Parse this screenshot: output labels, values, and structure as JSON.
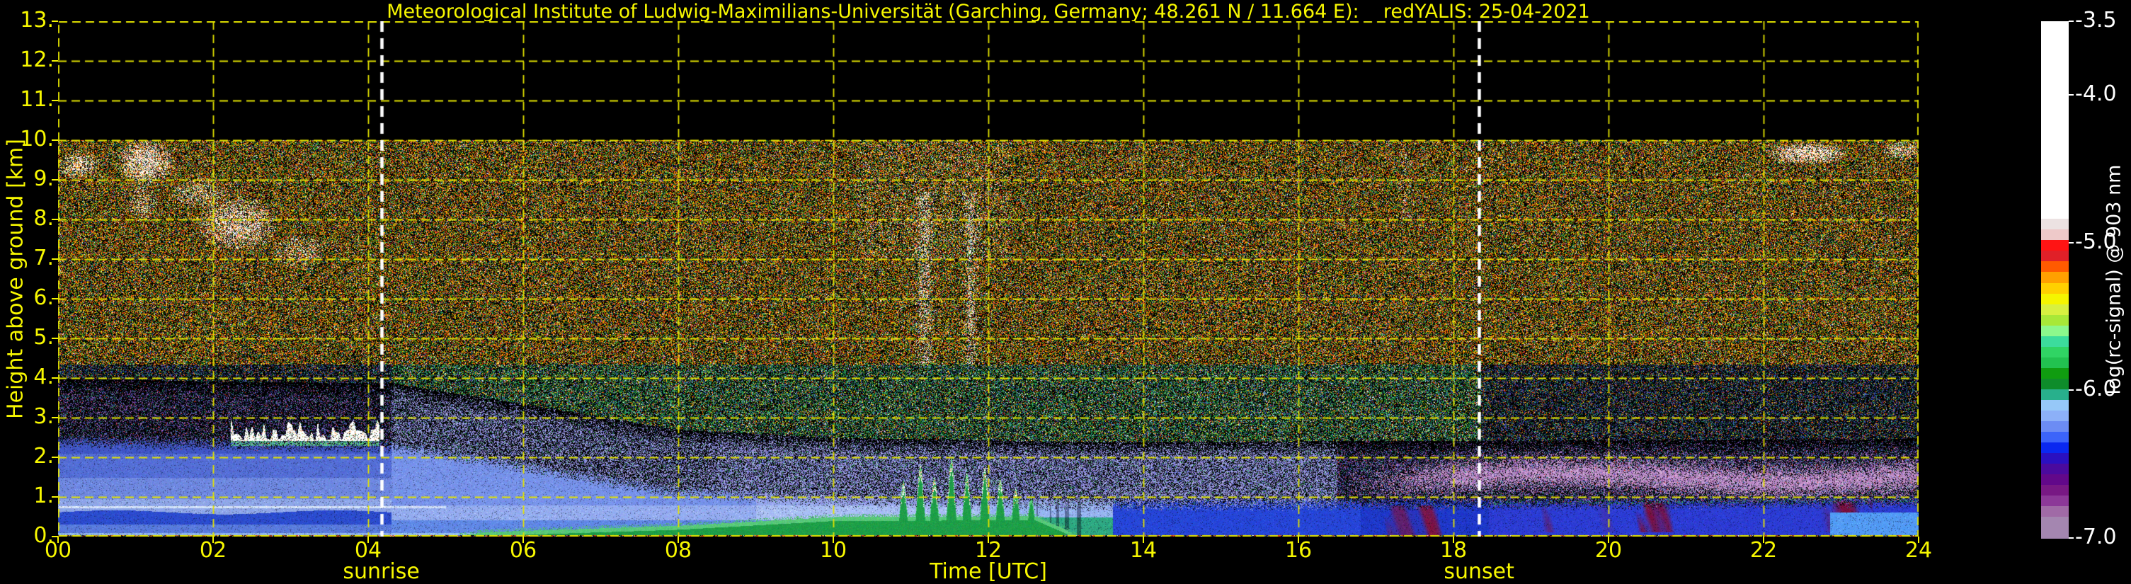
{
  "window": {
    "background": "#000000"
  },
  "header": {
    "title": "Meteorological Institute of Ludwig-Maximilians-Universität (Garching, Germany; 48.261 N / 11.664 E):    redYALIS: 25-04-2021"
  },
  "colors": {
    "axis_text": "#f7f700",
    "grid": "#e3e300",
    "tick": "#f5f500",
    "colorbar_text": "#ffffff",
    "event_line": "#ffffff",
    "background": "#000000",
    "green_layer": "#1e9e48",
    "boundary_layer_blue": "#2c4cce",
    "maroon_patch": "#781040",
    "mauve_band": "#bb8ec8",
    "cloud_white": "#ffffff",
    "cloud_fringe_orange": "#ffc896"
  },
  "chart_data": {
    "type": "heatmap",
    "title": "Meteorological Institute of Ludwig-Maximilians-Universität (Garching, Germany; 48.261 N / 11.664 E):    redYALIS: 25-04-2021",
    "xlabel": "Time [UTC]",
    "ylabel": "Height above ground [km]",
    "x_range_hours": [
      0,
      24
    ],
    "y_range_km": [
      0,
      13
    ],
    "data_top_km": 10,
    "grid": {
      "x_step_hours": 2,
      "y_step_km": 1,
      "style": "dashed",
      "on": true
    },
    "x_ticks": [
      {
        "v": 0,
        "label": "00"
      },
      {
        "v": 2,
        "label": "02"
      },
      {
        "v": 4,
        "label": "04"
      },
      {
        "v": 6,
        "label": "06"
      },
      {
        "v": 8,
        "label": "08"
      },
      {
        "v": 10,
        "label": "10"
      },
      {
        "v": 12,
        "label": "12"
      },
      {
        "v": 14,
        "label": "14"
      },
      {
        "v": 16,
        "label": "16"
      },
      {
        "v": 18,
        "label": "18"
      },
      {
        "v": 20,
        "label": "20"
      },
      {
        "v": 22,
        "label": "22"
      },
      {
        "v": 24,
        "label": "24"
      }
    ],
    "y_ticks": [
      {
        "v": 0,
        "label": "0."
      },
      {
        "v": 1,
        "label": "1."
      },
      {
        "v": 2,
        "label": "2."
      },
      {
        "v": 3,
        "label": "3."
      },
      {
        "v": 4,
        "label": "4."
      },
      {
        "v": 5,
        "label": "5."
      },
      {
        "v": 6,
        "label": "6."
      },
      {
        "v": 7,
        "label": "7."
      },
      {
        "v": 8,
        "label": "8."
      },
      {
        "v": 9,
        "label": "9."
      },
      {
        "v": 10,
        "label": "10."
      },
      {
        "v": 11,
        "label": "11."
      },
      {
        "v": 12,
        "label": "12."
      },
      {
        "v": 13,
        "label": "13."
      }
    ],
    "events": [
      {
        "name": "sunrise",
        "label": "sunrise",
        "time_utc": 4.17
      },
      {
        "name": "sunset",
        "label": "sunset",
        "time_utc": 18.33
      }
    ],
    "colorbar": {
      "label": "log(rc-signal) @ 903 nm",
      "min": -7.0,
      "max": -3.5,
      "ticks": [
        {
          "v": -3.5,
          "label": "-3.5"
        },
        {
          "v": -4.0,
          "label": "-4.0"
        },
        {
          "v": -5.0,
          "label": "-5.0"
        },
        {
          "v": -6.0,
          "label": "-6.0"
        },
        {
          "v": -7.0,
          "label": "-7.0"
        }
      ],
      "segments": [
        {
          "color": "#ffffff",
          "span": 18.6
        },
        {
          "color": "#ece2e2",
          "span": 1
        },
        {
          "color": "#eec9c9",
          "span": 1
        },
        {
          "color": "#ff1414",
          "span": 1
        },
        {
          "color": "#e02028",
          "span": 1
        },
        {
          "color": "#ff5a00",
          "span": 1
        },
        {
          "color": "#ffa000",
          "span": 1
        },
        {
          "color": "#ffd000",
          "span": 1
        },
        {
          "color": "#f5f500",
          "span": 1
        },
        {
          "color": "#d8f040",
          "span": 1
        },
        {
          "color": "#a8e838",
          "span": 1
        },
        {
          "color": "#8cf88c",
          "span": 1
        },
        {
          "color": "#3cdc9c",
          "span": 1
        },
        {
          "color": "#30d464",
          "span": 1
        },
        {
          "color": "#22c250",
          "span": 1
        },
        {
          "color": "#109c10",
          "span": 1
        },
        {
          "color": "#0e8c2a",
          "span": 1
        },
        {
          "color": "#28b08c",
          "span": 1
        },
        {
          "color": "#96c8f8",
          "span": 1
        },
        {
          "color": "#8cb0f8",
          "span": 1
        },
        {
          "color": "#6c8cf4",
          "span": 1
        },
        {
          "color": "#3c64fa",
          "span": 1
        },
        {
          "color": "#0a28f0",
          "span": 1
        },
        {
          "color": "#2a10c0",
          "span": 1
        },
        {
          "color": "#4a0a9e",
          "span": 1
        },
        {
          "color": "#62088a",
          "span": 1
        },
        {
          "color": "#781884",
          "span": 1
        },
        {
          "color": "#8c3898",
          "span": 1
        },
        {
          "color": "#a06aa6",
          "span": 1
        },
        {
          "color": "#a486b0",
          "span": 2
        }
      ]
    },
    "features": {
      "boundary_layer_top_km": [
        [
          0,
          2.55
        ],
        [
          2,
          2.47
        ],
        [
          4.3,
          2.42
        ],
        [
          6,
          1.9
        ],
        [
          8,
          1.25
        ],
        [
          10,
          1.05
        ],
        [
          13,
          0.95
        ],
        [
          18.5,
          0.97
        ],
        [
          24,
          1.02
        ]
      ],
      "green_layer_top_km": [
        [
          5.1,
          0
        ],
        [
          5.5,
          0.12
        ],
        [
          8,
          0.28
        ],
        [
          10,
          0.5
        ],
        [
          12.6,
          0.52
        ],
        [
          13.0,
          0.18
        ],
        [
          13.15,
          0
        ]
      ],
      "thermal_plumes": [
        [
          10.9,
          1.35
        ],
        [
          11.12,
          1.8
        ],
        [
          11.3,
          1.5
        ],
        [
          11.52,
          1.95
        ],
        [
          11.72,
          1.6
        ],
        [
          11.95,
          1.75
        ],
        [
          12.15,
          1.45
        ],
        [
          12.35,
          1.2
        ],
        [
          12.55,
          0.95
        ]
      ],
      "cloud_band_3km": {
        "t0": 2.25,
        "t1": 4.12,
        "base_km": 2.42,
        "top_km": 2.94
      },
      "cirrus_clouds": [
        {
          "tc": 0.26,
          "kc": 9.38,
          "tw": 0.3,
          "kh": 0.38,
          "d": 0.5
        },
        {
          "tc": 1.12,
          "kc": 9.45,
          "tw": 0.4,
          "kh": 0.6,
          "d": 0.65
        },
        {
          "tc": 1.08,
          "kc": 8.45,
          "tw": 0.22,
          "kh": 0.5,
          "d": 0.3
        },
        {
          "tc": 1.82,
          "kc": 8.65,
          "tw": 0.4,
          "kh": 0.4,
          "d": 0.32
        },
        {
          "tc": 2.3,
          "kc": 7.9,
          "tw": 0.55,
          "kh": 0.75,
          "d": 0.5
        },
        {
          "tc": 3.1,
          "kc": 7.2,
          "tw": 0.38,
          "kh": 0.42,
          "d": 0.3
        },
        {
          "tc": 22.55,
          "kc": 9.67,
          "tw": 0.55,
          "kh": 0.3,
          "d": 0.7
        },
        {
          "tc": 23.8,
          "kc": 9.75,
          "tw": 0.3,
          "kh": 0.25,
          "d": 0.45
        }
      ],
      "white_streak_times_utc": [
        11.17,
        11.77,
        17.38
      ],
      "bright_line": {
        "km": 0.75,
        "t0": 0,
        "t1": 5
      },
      "mauve_band": {
        "t_start": 16.6,
        "center_km": 1.5,
        "half_width_km": 0.34
      },
      "maroon_patches": {
        "t_start": 16.9,
        "t_end": 23.4,
        "km_max": 0.9
      }
    },
    "noise_seed": 1337
  }
}
